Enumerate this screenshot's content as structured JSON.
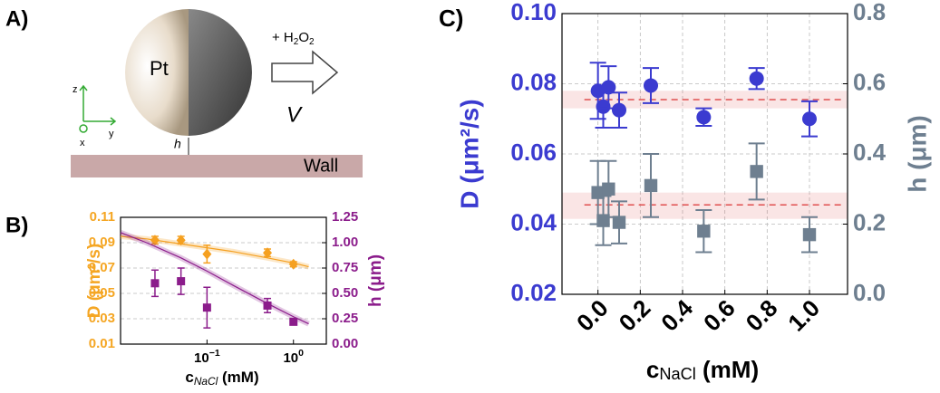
{
  "panel_a": {
    "label": "A)",
    "pt": "Pt",
    "reagent": [
      "+ H",
      "2",
      "O",
      "2"
    ],
    "velocity": "V",
    "axes": [
      "z",
      "x",
      "y"
    ],
    "gap": "h",
    "wall": "Wall"
  },
  "chart_data": [
    {
      "type": "errorbar",
      "panel_label": "B)",
      "xscale": "log",
      "xlim": [
        0.01,
        2.4
      ],
      "xticks": [
        {
          "value": 0.1,
          "label": "10",
          "sup": "−1"
        },
        {
          "value": 1,
          "label": "10",
          "sup": "0"
        }
      ],
      "xlabel": [
        "c",
        "NaCl",
        " (mM)"
      ],
      "ylim": [
        0.01,
        0.11
      ],
      "yticks": [
        0.01,
        0.03,
        0.05,
        0.07,
        0.09,
        0.11
      ],
      "ylabel": "D (μm²/s)",
      "ycolor": "#f5a623",
      "y2lim": [
        0,
        1.25
      ],
      "y2ticks": [
        {
          "value": 0,
          "label": "0.00"
        },
        0.25,
        {
          "value": 0.5,
          "label": "0.50"
        },
        0.75,
        {
          "value": 1,
          "label": "1.00"
        },
        1.25
      ],
      "y2label": "h (μm)",
      "y2color": "#8b1c8b",
      "grid": "y",
      "series": [
        {
          "color": "#f5a020",
          "marker": "diamond",
          "x": [
            0.025,
            0.05,
            0.1,
            0.5,
            1
          ],
          "values": [
            0.092,
            0.092,
            0.081,
            0.082,
            0.073
          ],
          "errors": [
            0.003,
            0.003,
            0.007,
            0.003,
            0.002
          ],
          "fit": {
            "x": [
              0.01,
              0.02,
              0.05,
              0.1,
              0.2,
              0.5,
              1,
              1.5
            ],
            "values": [
              0.095,
              0.093,
              0.089,
              0.086,
              0.083,
              0.078,
              0.074,
              0.071
            ]
          }
        },
        {
          "axis": "y2",
          "color": "#8b1c8b",
          "marker": "square",
          "x": [
            0.025,
            0.05,
            0.1,
            0.5,
            1
          ],
          "values": [
            0.6,
            0.62,
            0.36,
            0.38,
            0.22
          ],
          "errors": [
            0.13,
            0.13,
            0.2,
            0.07,
            0.03
          ],
          "fit": {
            "x": [
              0.01,
              0.02,
              0.05,
              0.1,
              0.2,
              0.5,
              1,
              1.5
            ],
            "values": [
              1.1,
              1.0,
              0.85,
              0.72,
              0.58,
              0.4,
              0.27,
              0.2
            ]
          }
        }
      ]
    },
    {
      "type": "errorbar",
      "panel_label": "C)",
      "xscale": "linear",
      "xlim": [
        -0.17,
        1.18
      ],
      "xticks": [
        {
          "value": 0,
          "label": "0.0"
        },
        0.2,
        0.4,
        0.6,
        0.8,
        {
          "value": 1,
          "label": "1.0"
        }
      ],
      "xtick_rotation": -45,
      "xlabel": [
        "c",
        "NaCl",
        " (mM)"
      ],
      "ylim": [
        0.02,
        0.1
      ],
      "yticks": [
        0.02,
        0.04,
        0.06,
        0.08,
        {
          "value": 0.1,
          "label": "0.10"
        }
      ],
      "ylabel": "D (μm²/s)",
      "ycolor": "#3b3bd0",
      "y2lim": [
        0,
        0.8
      ],
      "y2ticks": [
        {
          "value": 0,
          "label": "0.0"
        },
        {
          "value": 0.2,
          "label": "0.2"
        },
        {
          "value": 0.4,
          "label": "0.4"
        },
        {
          "value": 0.6,
          "label": "0.6"
        },
        {
          "value": 0.8,
          "label": "0.8"
        }
      ],
      "y2label": "h (μm)",
      "y2color": "#6e7f90",
      "grid": "both",
      "series": [
        {
          "color": "#3b3bd0",
          "marker": "circle",
          "x": [
            0,
            0.025,
            0.05,
            0.1,
            0.25,
            0.5,
            0.75,
            1
          ],
          "values": [
            0.078,
            0.0735,
            0.079,
            0.0725,
            0.0795,
            0.0705,
            0.0815,
            0.07
          ],
          "errors": [
            0.008,
            0.006,
            0.006,
            0.005,
            0.005,
            0.0025,
            0.003,
            0.005
          ]
        },
        {
          "axis": "y2",
          "color": "#6e7f90",
          "marker": "square",
          "x": [
            0,
            0.025,
            0.05,
            0.1,
            0.25,
            0.5,
            0.75,
            1
          ],
          "values": [
            0.29,
            0.21,
            0.3,
            0.205,
            0.31,
            0.18,
            0.35,
            0.17
          ],
          "errors": [
            0.09,
            0.07,
            0.08,
            0.06,
            0.09,
            0.06,
            0.08,
            0.05
          ]
        }
      ],
      "reference_lines": [
        {
          "axis": "y",
          "value": 0.0755,
          "band": [
            0.073,
            0.078
          ],
          "color": "#e05050"
        },
        {
          "axis": "y2",
          "value": 0.255,
          "band": [
            0.215,
            0.29
          ],
          "color": "#e05050"
        }
      ]
    }
  ]
}
